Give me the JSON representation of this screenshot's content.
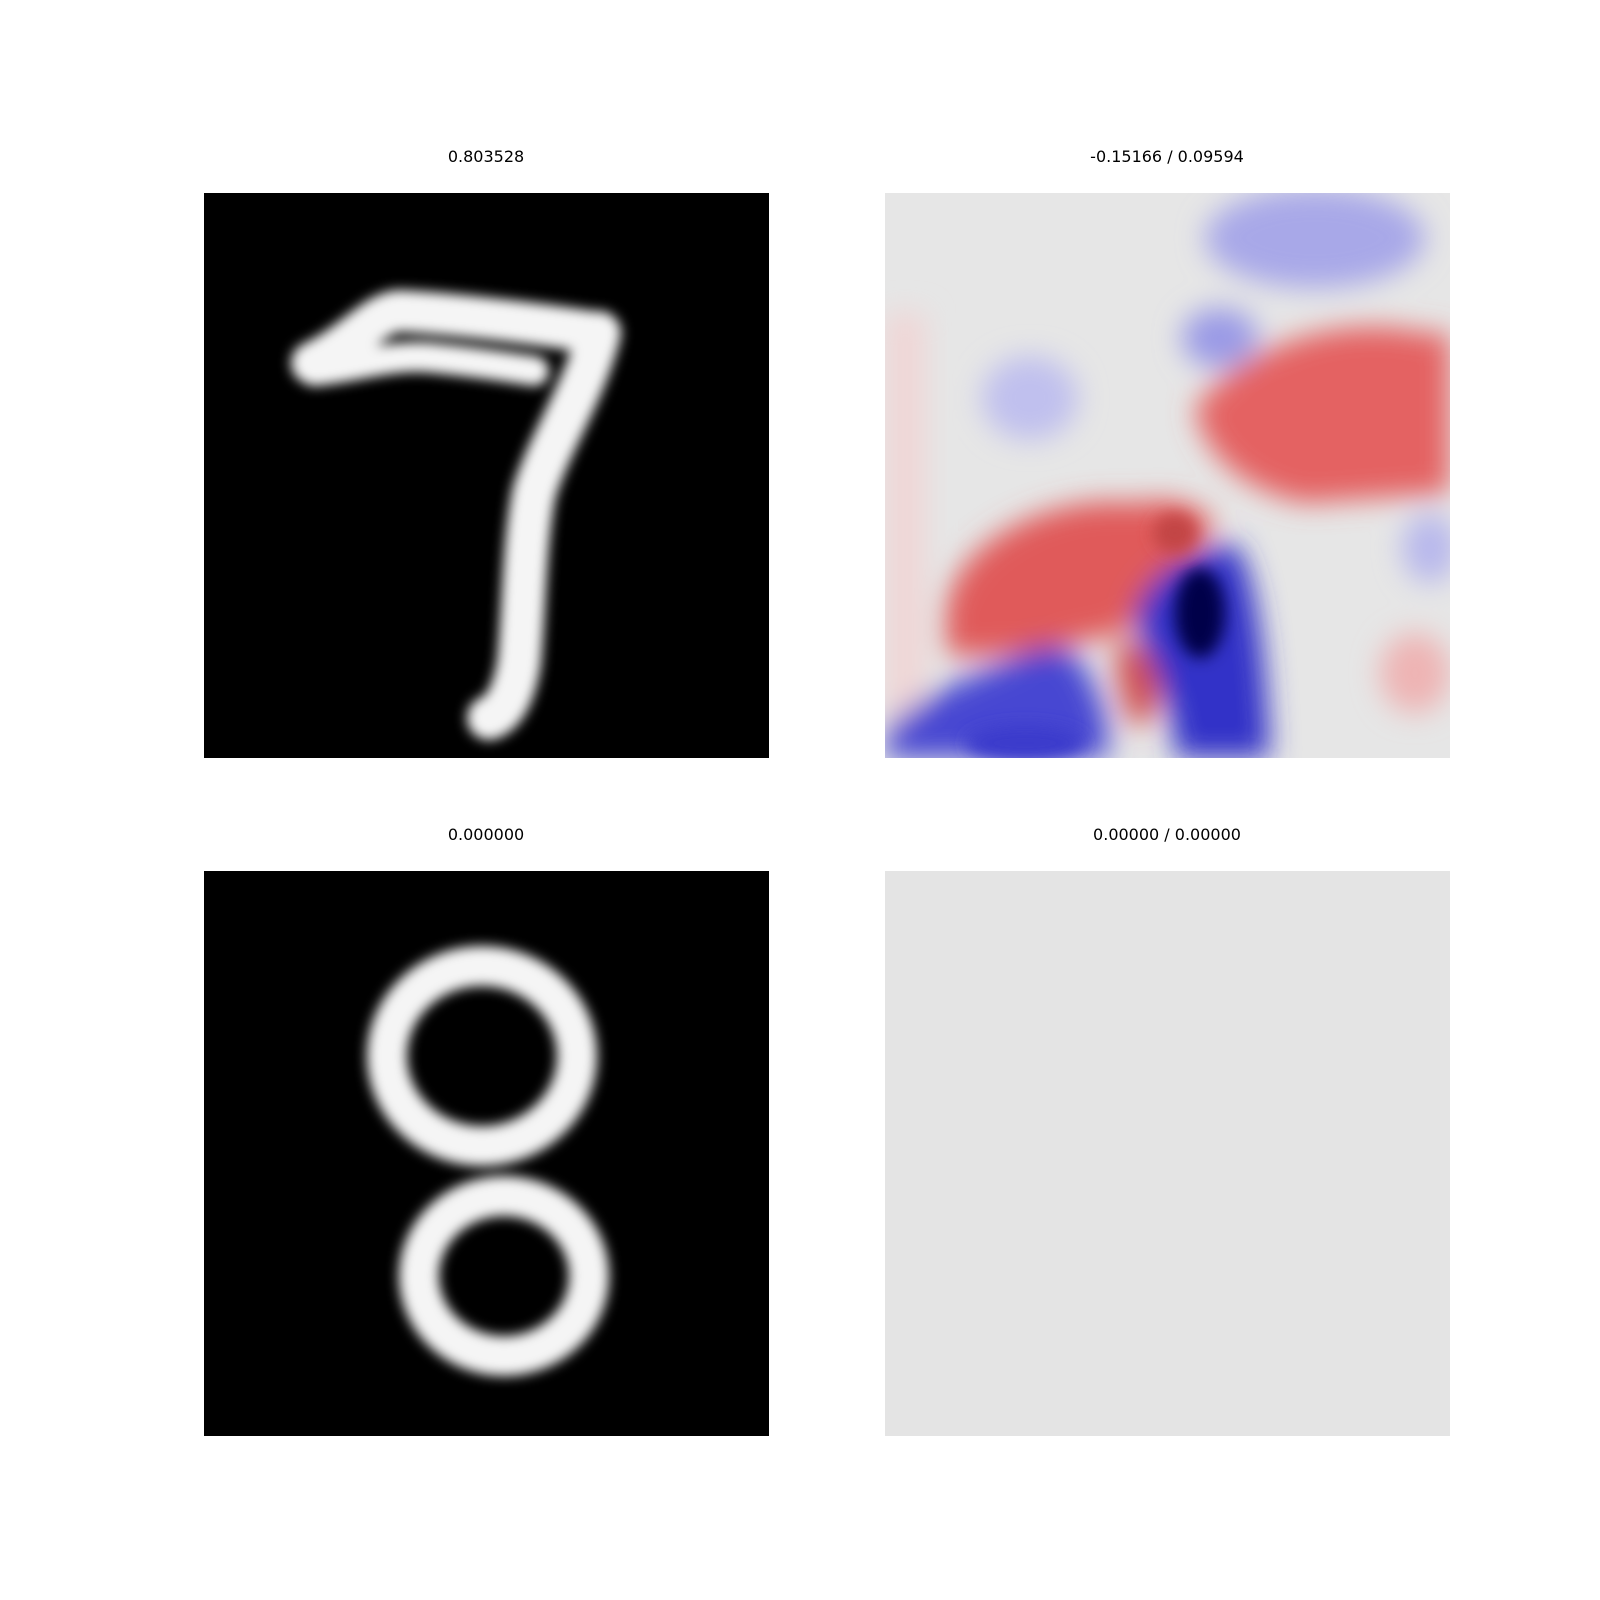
{
  "panels": [
    {
      "title": "0.803528",
      "content": "handwritten digit 7, white on black"
    },
    {
      "title": "-0.15166 / 0.09594",
      "content": "red/blue attribution heatmap"
    },
    {
      "title": "0.000000",
      "content": "handwritten digit 8, white on black"
    },
    {
      "title": "0.00000 / 0.00000",
      "content": "uniform light grey map"
    }
  ],
  "colors": {
    "digit_background": "#000000",
    "digit_stroke": "#f5f5f5",
    "heat_neutral": "#e6e6e6",
    "heat_positive": "#e05a5a",
    "heat_negative": "#3c3ccf",
    "heat_strong_negative": "#00004a",
    "empty_map": "#e4e4e4"
  }
}
